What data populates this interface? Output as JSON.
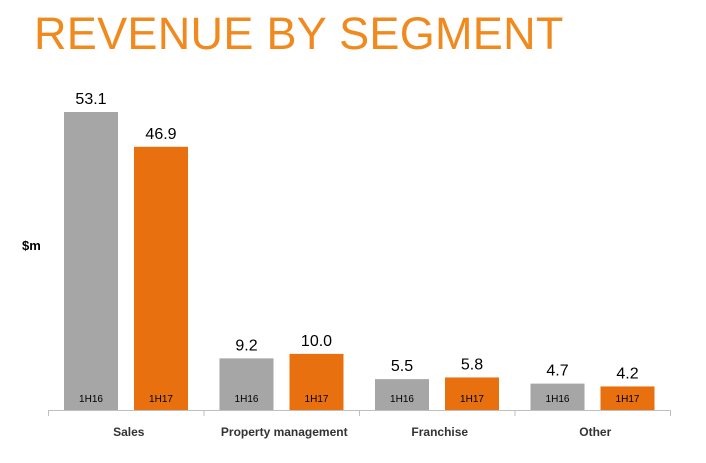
{
  "chart_data": {
    "type": "bar",
    "title": "REVENUE BY SEGMENT",
    "ylabel": "$m",
    "xlabel": "",
    "categories": [
      "Sales",
      "Property management",
      "Franchise",
      "Other"
    ],
    "series": [
      {
        "name": "1H16",
        "color": "#a6a6a6",
        "values": [
          53.1,
          9.2,
          5.5,
          4.7
        ],
        "value_labels": [
          "53.1",
          "9.2",
          "5.5",
          "4.7"
        ]
      },
      {
        "name": "1H17",
        "color": "#e8700f",
        "values": [
          46.9,
          10.0,
          5.8,
          4.2
        ],
        "value_labels": [
          "46.9",
          "10.0",
          "5.8",
          "4.2"
        ]
      }
    ],
    "ylim": [
      0,
      53.1
    ],
    "grid": false,
    "legend": "none"
  }
}
